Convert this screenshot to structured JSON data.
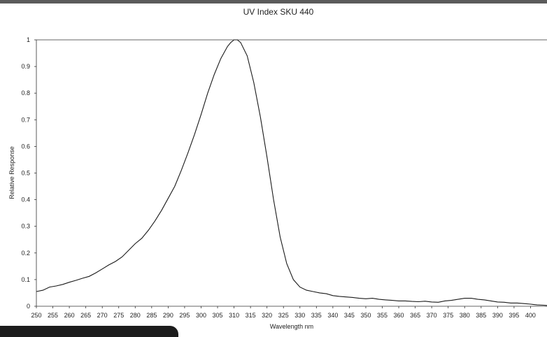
{
  "chart_data": {
    "type": "line",
    "title": "UV Index SKU 440",
    "xlabel": "Wavelength nm",
    "ylabel": "Relative Response",
    "xlim": [
      250,
      405
    ],
    "ylim": [
      0,
      1
    ],
    "xticks": [
      250,
      255,
      260,
      265,
      270,
      275,
      280,
      285,
      290,
      295,
      300,
      305,
      310,
      315,
      320,
      325,
      330,
      335,
      340,
      345,
      350,
      355,
      360,
      365,
      370,
      375,
      380,
      385,
      390,
      395,
      400
    ],
    "yticks": [
      0,
      0.1,
      0.2,
      0.3,
      0.4,
      0.5,
      0.6,
      0.7,
      0.8,
      0.9,
      1
    ],
    "grid": false,
    "legend": "none",
    "line_color": "#1a1a1a",
    "series": [
      {
        "x": [
          250,
          252,
          254,
          256,
          258,
          260,
          262,
          264,
          266,
          268,
          270,
          272,
          274,
          276,
          278,
          280,
          282,
          284,
          286,
          288,
          290,
          292,
          294,
          296,
          298,
          300,
          302,
          304,
          306,
          308,
          309,
          310,
          311,
          312,
          314,
          316,
          318,
          320,
          322,
          324,
          326,
          328,
          330,
          332,
          334,
          336,
          338,
          340,
          342,
          344,
          346,
          348,
          350,
          352,
          354,
          356,
          358,
          360,
          362,
          364,
          366,
          368,
          370,
          372,
          374,
          376,
          378,
          380,
          382,
          384,
          386,
          388,
          390,
          392,
          394,
          396,
          398,
          400,
          402,
          404,
          405
        ],
        "y": [
          0.055,
          0.06,
          0.072,
          0.076,
          0.082,
          0.09,
          0.097,
          0.105,
          0.112,
          0.125,
          0.14,
          0.155,
          0.168,
          0.185,
          0.21,
          0.235,
          0.255,
          0.285,
          0.32,
          0.36,
          0.405,
          0.45,
          0.51,
          0.575,
          0.645,
          0.72,
          0.8,
          0.87,
          0.93,
          0.975,
          0.99,
          1.0,
          1.0,
          0.99,
          0.94,
          0.84,
          0.71,
          0.56,
          0.4,
          0.26,
          0.16,
          0.1,
          0.072,
          0.06,
          0.055,
          0.05,
          0.047,
          0.04,
          0.037,
          0.035,
          0.033,
          0.03,
          0.028,
          0.03,
          0.026,
          0.024,
          0.022,
          0.02,
          0.02,
          0.018,
          0.017,
          0.019,
          0.016,
          0.015,
          0.02,
          0.022,
          0.026,
          0.03,
          0.03,
          0.026,
          0.024,
          0.02,
          0.016,
          0.015,
          0.012,
          0.012,
          0.01,
          0.008,
          0.005,
          0.004,
          0.003
        ]
      }
    ]
  }
}
